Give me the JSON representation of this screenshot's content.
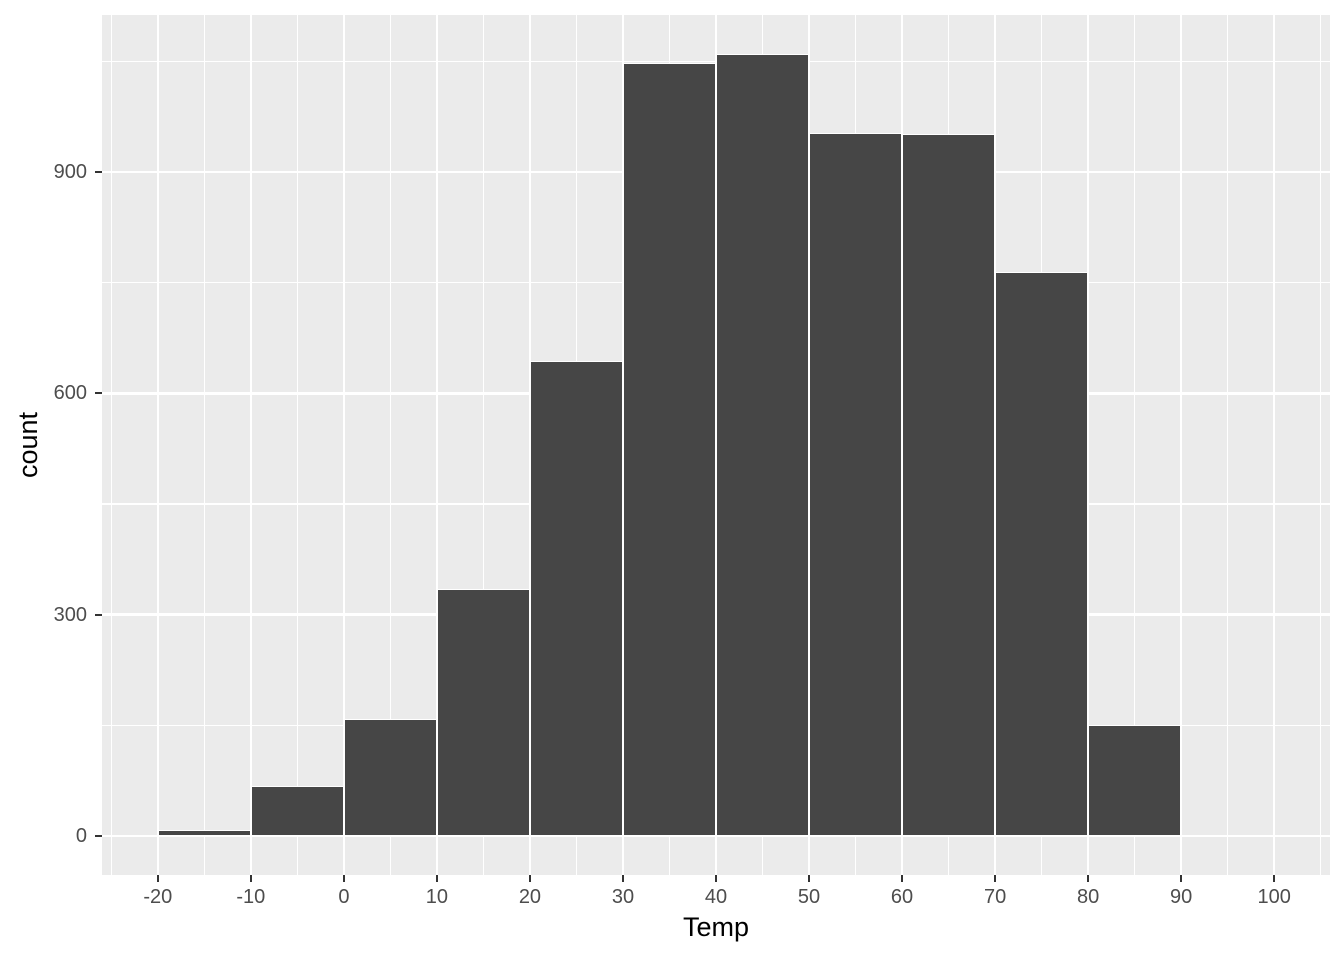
{
  "figure": {
    "kind": "ggplot-style histogram",
    "background": "#FFFFFF"
  },
  "chart_data": {
    "type": "bar",
    "subtype": "histogram",
    "title": "",
    "xlabel": "Temp",
    "ylabel": "count",
    "bin_width": 10,
    "bins": [
      {
        "x0": -20,
        "x1": -10,
        "count": 8
      },
      {
        "x0": -10,
        "x1": 0,
        "count": 67
      },
      {
        "x0": 0,
        "x1": 10,
        "count": 158
      },
      {
        "x0": 10,
        "x1": 20,
        "count": 335
      },
      {
        "x0": 20,
        "x1": 30,
        "count": 644
      },
      {
        "x0": 30,
        "x1": 40,
        "count": 1048
      },
      {
        "x0": 40,
        "x1": 50,
        "count": 1060
      },
      {
        "x0": 50,
        "x1": 60,
        "count": 953
      },
      {
        "x0": 60,
        "x1": 70,
        "count": 951
      },
      {
        "x0": 70,
        "x1": 80,
        "count": 765
      },
      {
        "x0": 80,
        "x1": 90,
        "count": 150
      }
    ],
    "x_ticks": [
      -20,
      -10,
      0,
      10,
      20,
      30,
      40,
      50,
      60,
      70,
      80,
      90,
      100
    ],
    "y_ticks": [
      0,
      300,
      600,
      900
    ],
    "xlim": [
      -26,
      106
    ],
    "ylim": [
      -53,
      1113
    ],
    "grid": "major and minor white gridlines on gray panel",
    "legend": "none",
    "colors": {
      "bar_fill": "#464646",
      "bar_border": "#FFFFFF",
      "panel_bg": "#EBEBEB",
      "grid_line": "#FFFFFF",
      "tick_mark": "#333333",
      "tick_label": "#4D4D4D",
      "axis_title": "#000000",
      "background": "#FFFFFF"
    }
  }
}
